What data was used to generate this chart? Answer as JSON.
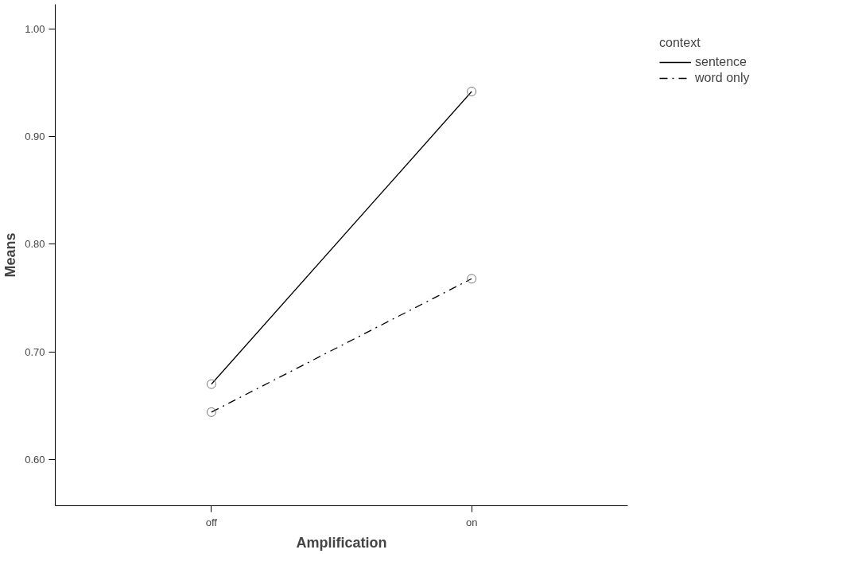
{
  "chart_data": {
    "type": "line",
    "xlabel": "Amplification",
    "ylabel": "Means",
    "legend_title": "context",
    "categories": [
      "off",
      "on"
    ],
    "series": [
      {
        "name": "sentence",
        "color": "#000000",
        "values": [
          0.67,
          0.942
        ],
        "line_style": "solid"
      },
      {
        "name": "word only",
        "color": "#000000",
        "values": [
          0.644,
          0.768
        ],
        "line_style": "dashed"
      }
    ],
    "ylim": [
      0.557,
      1.023
    ],
    "yticks": [
      {
        "value": 0.6,
        "label": "0.60"
      },
      {
        "value": 0.7,
        "label": "0.70"
      },
      {
        "value": 0.8,
        "label": "0.80"
      },
      {
        "value": 0.9,
        "label": "0.90"
      },
      {
        "value": 1.0,
        "label": "1.00"
      }
    ],
    "marker": "circle",
    "grid": false,
    "legend": "top right"
  }
}
